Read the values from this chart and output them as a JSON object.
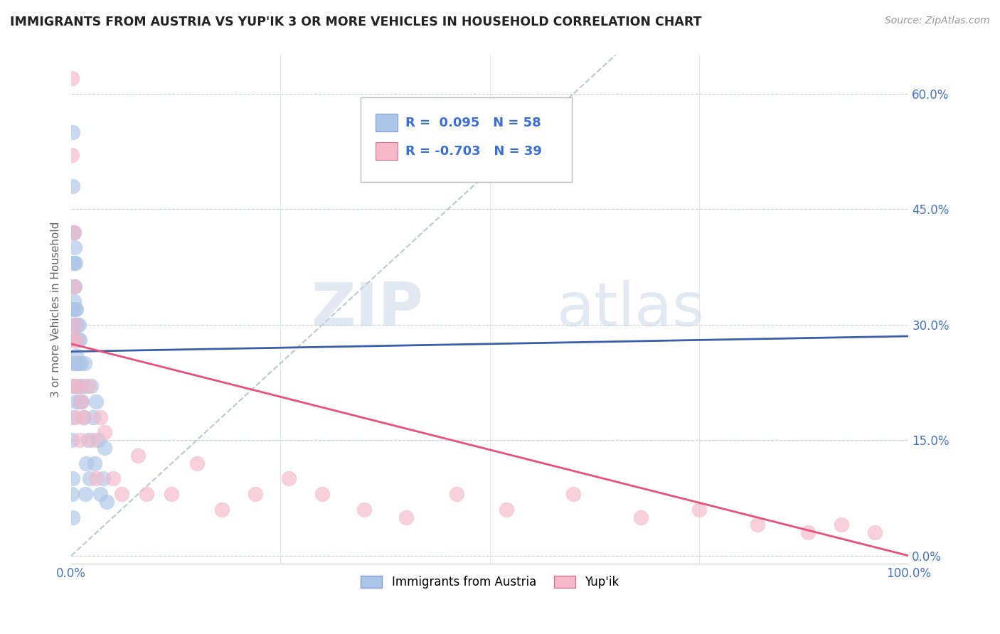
{
  "title": "IMMIGRANTS FROM AUSTRIA VS YUP'IK 3 OR MORE VEHICLES IN HOUSEHOLD CORRELATION CHART",
  "source": "Source: ZipAtlas.com",
  "ylabel": "3 or more Vehicles in Household",
  "legend_label1": "Immigrants from Austria",
  "legend_label2": "Yup'ik",
  "r1": 0.095,
  "n1": 58,
  "r2": -0.703,
  "n2": 39,
  "xlim": [
    0.0,
    1.0
  ],
  "ylim": [
    -0.01,
    0.65
  ],
  "yticks": [
    0.0,
    0.15,
    0.3,
    0.45,
    0.6
  ],
  "ytick_labels": [
    "0.0%",
    "15.0%",
    "30.0%",
    "45.0%",
    "60.0%"
  ],
  "xtick_left_label": "0.0%",
  "xtick_right_label": "100.0%",
  "color_blue": "#adc6e8",
  "color_pink": "#f5b8c8",
  "line_color_blue": "#3a5faa",
  "line_color_pink": "#e8507a",
  "watermark_zip": "ZIP",
  "watermark_atlas": "atlas",
  "scatter_blue_x": [
    0.0005,
    0.0008,
    0.001,
    0.001,
    0.001,
    0.0012,
    0.0015,
    0.0015,
    0.002,
    0.002,
    0.002,
    0.002,
    0.0022,
    0.0025,
    0.003,
    0.003,
    0.003,
    0.003,
    0.0032,
    0.0035,
    0.004,
    0.004,
    0.004,
    0.004,
    0.005,
    0.005,
    0.005,
    0.005,
    0.006,
    0.006,
    0.006,
    0.007,
    0.007,
    0.008,
    0.008,
    0.009,
    0.009,
    0.01,
    0.01,
    0.011,
    0.012,
    0.013,
    0.014,
    0.015,
    0.016,
    0.017,
    0.018,
    0.02,
    0.022,
    0.024,
    0.026,
    0.028,
    0.03,
    0.032,
    0.035,
    0.038,
    0.04,
    0.042
  ],
  "scatter_blue_y": [
    0.28,
    0.22,
    0.08,
    0.15,
    0.32,
    0.42,
    0.48,
    0.55,
    0.05,
    0.1,
    0.18,
    0.25,
    0.32,
    0.38,
    0.28,
    0.33,
    0.38,
    0.42,
    0.3,
    0.35,
    0.25,
    0.3,
    0.35,
    0.4,
    0.22,
    0.28,
    0.32,
    0.38,
    0.2,
    0.26,
    0.32,
    0.25,
    0.3,
    0.22,
    0.28,
    0.25,
    0.3,
    0.2,
    0.28,
    0.22,
    0.25,
    0.2,
    0.18,
    0.22,
    0.25,
    0.08,
    0.12,
    0.15,
    0.1,
    0.22,
    0.18,
    0.12,
    0.2,
    0.15,
    0.08,
    0.1,
    0.14,
    0.07
  ],
  "scatter_pink_x": [
    0.0008,
    0.001,
    0.0015,
    0.002,
    0.003,
    0.003,
    0.004,
    0.005,
    0.006,
    0.008,
    0.01,
    0.012,
    0.015,
    0.02,
    0.025,
    0.03,
    0.035,
    0.04,
    0.05,
    0.06,
    0.08,
    0.09,
    0.12,
    0.15,
    0.18,
    0.22,
    0.26,
    0.3,
    0.35,
    0.4,
    0.46,
    0.52,
    0.6,
    0.68,
    0.75,
    0.82,
    0.88,
    0.92,
    0.96
  ],
  "scatter_pink_y": [
    0.62,
    0.52,
    0.28,
    0.22,
    0.35,
    0.42,
    0.3,
    0.18,
    0.28,
    0.22,
    0.15,
    0.2,
    0.18,
    0.22,
    0.15,
    0.1,
    0.18,
    0.16,
    0.1,
    0.08,
    0.13,
    0.08,
    0.08,
    0.12,
    0.06,
    0.08,
    0.1,
    0.08,
    0.06,
    0.05,
    0.08,
    0.06,
    0.08,
    0.05,
    0.06,
    0.04,
    0.03,
    0.04,
    0.03
  ],
  "blue_line_x": [
    0.0,
    1.0
  ],
  "blue_line_y": [
    0.265,
    0.285
  ],
  "pink_line_x": [
    0.0,
    1.0
  ],
  "pink_line_y": [
    0.275,
    0.0
  ],
  "diag_line_x": [
    0.0,
    0.65
  ],
  "diag_line_y": [
    0.0,
    0.65
  ]
}
